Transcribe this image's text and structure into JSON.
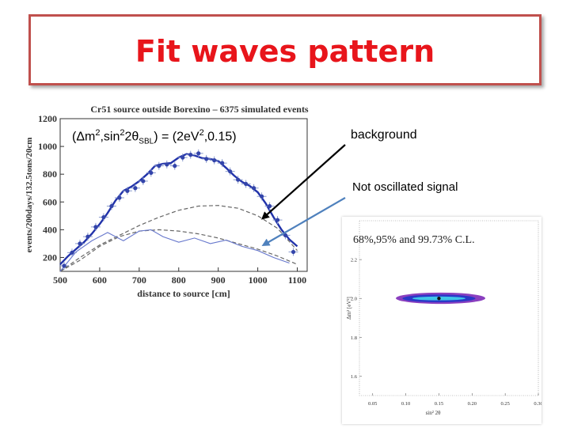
{
  "slide": {
    "title": "Fit waves pattern",
    "formula": {
      "pre": "(Δm",
      "sup1": "2",
      "mid": ",sin",
      "sup2": "2",
      "mid2": "2θ",
      "sub": "SBL",
      "post": ") = (2eV",
      "sup3": "2",
      "end": ",0.15)"
    },
    "annotation_background": "background",
    "annotation_signal": "Not oscillated signal",
    "colors": {
      "title": "#e8151b",
      "border": "#c0504d",
      "fit": "#2233aa",
      "arrow_signal": "#4f81bd"
    }
  },
  "chart_data": [
    {
      "type": "line",
      "title": "Cr51 source outside Borexino – 6375 simulated events",
      "xlabel": "distance to source [cm]",
      "ylabel": "events/200days/132.5tons/20cm",
      "xlim": [
        500,
        1125
      ],
      "ylim": [
        100,
        1200
      ],
      "xticks": [
        "500",
        "600",
        "700",
        "800",
        "900",
        "1000",
        "1100"
      ],
      "yticks": [
        "200",
        "400",
        "600",
        "800",
        "1000",
        "1200"
      ],
      "series": [
        {
          "name": "simulated data",
          "x": [
            510,
            530,
            550,
            570,
            590,
            610,
            630,
            650,
            670,
            690,
            710,
            730,
            750,
            770,
            790,
            810,
            830,
            850,
            870,
            890,
            910,
            930,
            950,
            970,
            990,
            1010,
            1030,
            1050,
            1070,
            1090
          ],
          "y": [
            140,
            235,
            300,
            350,
            420,
            490,
            570,
            630,
            680,
            700,
            750,
            810,
            860,
            870,
            860,
            920,
            940,
            950,
            910,
            900,
            880,
            820,
            760,
            730,
            700,
            640,
            570,
            470,
            360,
            240
          ]
        },
        {
          "name": "fit",
          "x": [
            500,
            520,
            540,
            560,
            580,
            600,
            620,
            640,
            660,
            680,
            700,
            720,
            740,
            760,
            780,
            800,
            820,
            840,
            860,
            880,
            900,
            920,
            940,
            960,
            980,
            1000,
            1020,
            1040,
            1060,
            1080,
            1100
          ],
          "y": [
            150,
            210,
            260,
            310,
            370,
            440,
            520,
            610,
            680,
            710,
            750,
            800,
            860,
            875,
            880,
            920,
            945,
            935,
            915,
            910,
            895,
            845,
            790,
            745,
            715,
            670,
            590,
            490,
            400,
            330,
            280
          ]
        },
        {
          "name": "signal no oscillation (dashed)",
          "x": [
            500,
            550,
            600,
            650,
            700,
            750,
            800,
            850,
            900,
            950,
            1000,
            1050,
            1100
          ],
          "y": [
            100,
            200,
            290,
            360,
            430,
            490,
            540,
            570,
            575,
            555,
            500,
            410,
            250
          ]
        },
        {
          "name": "background (dashed)",
          "x": [
            500,
            550,
            600,
            650,
            700,
            750,
            800,
            850,
            900,
            950,
            1000,
            1050,
            1100
          ],
          "y": [
            100,
            180,
            280,
            350,
            390,
            400,
            390,
            370,
            340,
            300,
            260,
            210,
            150
          ]
        },
        {
          "name": "oscillated signal",
          "x": [
            500,
            540,
            580,
            620,
            660,
            700,
            730,
            760,
            800,
            840,
            880,
            920,
            960,
            1000,
            1040,
            1080
          ],
          "y": [
            100,
            240,
            320,
            380,
            320,
            390,
            400,
            350,
            310,
            340,
            300,
            325,
            280,
            250,
            200,
            160
          ]
        }
      ]
    },
    {
      "type": "scatter",
      "title": "68%,95% and 99.73% C.L.",
      "xlabel": "sin² 2θ",
      "ylabel": "Δm² [eV²]",
      "xlim": [
        0.03,
        0.3
      ],
      "ylim": [
        1.5,
        2.4
      ],
      "xticks": [
        "0.05",
        "0.10",
        "0.15",
        "0.20",
        "0.25",
        "0.30"
      ],
      "yticks": [
        "1.6",
        "1.8",
        "2.0",
        "2.2"
      ],
      "best_fit": {
        "x": 0.15,
        "y": 2.0
      },
      "contours": [
        {
          "level": "99.73%",
          "x_range": [
            0.085,
            0.22
          ],
          "y_range": [
            1.972,
            2.03
          ],
          "color": "#8a3fbf"
        },
        {
          "level": "95%",
          "x_range": [
            0.095,
            0.205
          ],
          "y_range": [
            1.98,
            2.02
          ],
          "color": "#2a37c8"
        },
        {
          "level": "68%",
          "x_range": [
            0.11,
            0.19
          ],
          "y_range": [
            1.99,
            2.01
          ],
          "color": "#3fc4e8"
        }
      ]
    }
  ]
}
